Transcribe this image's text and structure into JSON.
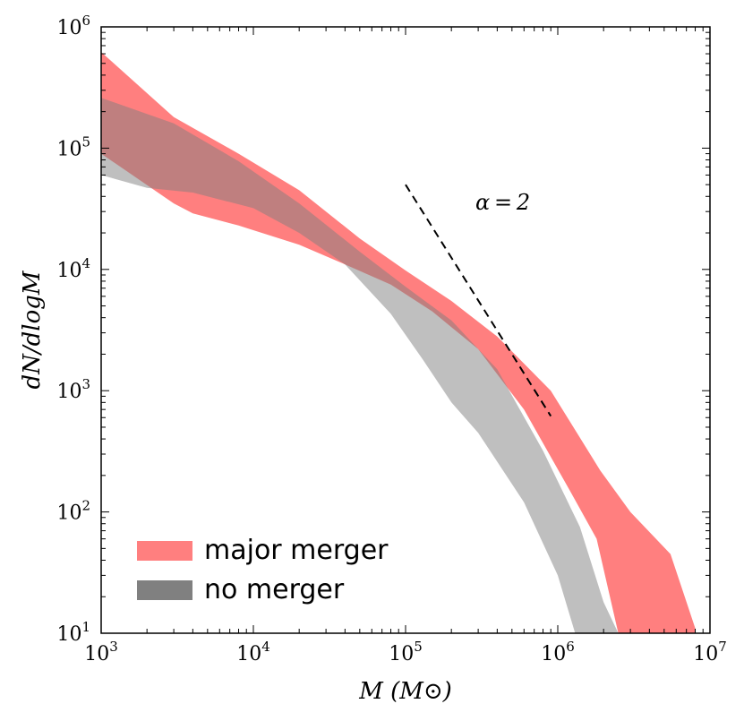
{
  "chart_data": {
    "type": "area",
    "xscale": "log",
    "yscale": "log",
    "xlim": [
      1000,
      10000000
    ],
    "ylim": [
      10,
      1000000
    ],
    "xlabel": "M (M⊙)",
    "ylabel": "dN/dlogM",
    "x_ticks": [
      {
        "value": 1000,
        "base": "10",
        "exp": "3"
      },
      {
        "value": 10000,
        "base": "10",
        "exp": "4"
      },
      {
        "value": 100000,
        "base": "10",
        "exp": "5"
      },
      {
        "value": 1000000,
        "base": "10",
        "exp": "6"
      },
      {
        "value": 10000000,
        "base": "10",
        "exp": "7"
      }
    ],
    "y_ticks": [
      {
        "value": 10,
        "base": "10",
        "exp": "1"
      },
      {
        "value": 100,
        "base": "10",
        "exp": "2"
      },
      {
        "value": 1000,
        "base": "10",
        "exp": "3"
      },
      {
        "value": 10000,
        "base": "10",
        "exp": "4"
      },
      {
        "value": 100000,
        "base": "10",
        "exp": "5"
      },
      {
        "value": 1000000,
        "base": "10",
        "exp": "6"
      }
    ],
    "series": [
      {
        "name": "major merger",
        "color": "#ff7f7f",
        "upper": [
          [
            1000,
            620000
          ],
          [
            3000,
            180000
          ],
          [
            8000,
            90000
          ],
          [
            20000,
            45000
          ],
          [
            50000,
            18000
          ],
          [
            100000,
            9800
          ],
          [
            200000,
            5500
          ],
          [
            400000,
            2800
          ],
          [
            900000,
            1000
          ],
          [
            1900000,
            220
          ],
          [
            3000000,
            100
          ],
          [
            5500000,
            45
          ],
          [
            8000000,
            11
          ]
        ],
        "lower": [
          [
            8000000,
            10
          ],
          [
            2500000,
            10
          ],
          [
            1800000,
            60
          ],
          [
            1200000,
            150
          ],
          [
            600000,
            700
          ],
          [
            300000,
            2200
          ],
          [
            150000,
            4500
          ],
          [
            80000,
            7500
          ],
          [
            40000,
            11000
          ],
          [
            20000,
            16000
          ],
          [
            8000,
            23000
          ],
          [
            4000,
            29000
          ],
          [
            3000,
            35000
          ],
          [
            1000,
            90000
          ]
        ]
      },
      {
        "name": "no merger",
        "color": "#808080",
        "upper": [
          [
            1000,
            260000
          ],
          [
            3000,
            160000
          ],
          [
            8000,
            78000
          ],
          [
            20000,
            35000
          ],
          [
            50000,
            14000
          ],
          [
            100000,
            7200
          ],
          [
            200000,
            3800
          ],
          [
            400000,
            1500
          ],
          [
            800000,
            320
          ],
          [
            1400000,
            75
          ],
          [
            2000000,
            18
          ],
          [
            2500000,
            10
          ]
        ],
        "lower": [
          [
            1300000,
            10
          ],
          [
            1000000,
            30
          ],
          [
            600000,
            120
          ],
          [
            300000,
            450
          ],
          [
            200000,
            800
          ],
          [
            130000,
            1800
          ],
          [
            80000,
            4300
          ],
          [
            40000,
            11000
          ],
          [
            20000,
            20000
          ],
          [
            10000,
            32000
          ],
          [
            4000,
            43000
          ],
          [
            2000,
            47000
          ],
          [
            1000,
            60000
          ]
        ]
      }
    ],
    "annotation": {
      "text": "α = 2",
      "slope": -2,
      "from": 100000,
      "to": 900000,
      "y_start": 50000
    },
    "legend": {
      "position": "lower-left",
      "entries": [
        "major merger",
        "no merger"
      ]
    }
  }
}
